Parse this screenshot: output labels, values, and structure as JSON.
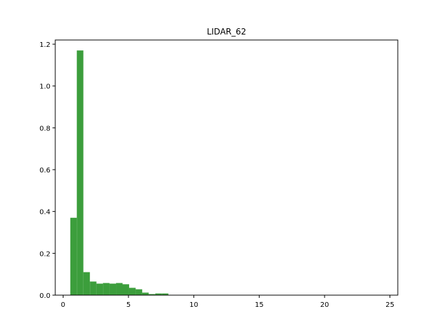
{
  "chart_data": {
    "type": "bar",
    "title": "LIDAR_62",
    "xlabel": "",
    "ylabel": "",
    "xlim": [
      -0.6,
      25.6
    ],
    "ylim": [
      0,
      1.22
    ],
    "grid": false,
    "bar_color": "#3c9e3c",
    "xticks": [
      0,
      5,
      10,
      15,
      20,
      25
    ],
    "yticks": [
      "0.0",
      "0.2",
      "0.4",
      "0.6",
      "0.8",
      "1.0",
      "1.2"
    ],
    "bins": [
      {
        "x0": 0.55,
        "x1": 1.05,
        "value": 0.37
      },
      {
        "x0": 1.05,
        "x1": 1.55,
        "value": 1.17
      },
      {
        "x0": 1.55,
        "x1": 2.05,
        "value": 0.11
      },
      {
        "x0": 2.05,
        "x1": 2.55,
        "value": 0.065
      },
      {
        "x0": 2.55,
        "x1": 3.05,
        "value": 0.055
      },
      {
        "x0": 3.05,
        "x1": 3.55,
        "value": 0.058
      },
      {
        "x0": 3.55,
        "x1": 4.05,
        "value": 0.055
      },
      {
        "x0": 4.05,
        "x1": 4.55,
        "value": 0.058
      },
      {
        "x0": 4.55,
        "x1": 5.05,
        "value": 0.052
      },
      {
        "x0": 5.05,
        "x1": 5.55,
        "value": 0.035
      },
      {
        "x0": 5.55,
        "x1": 6.05,
        "value": 0.028
      },
      {
        "x0": 6.05,
        "x1": 6.55,
        "value": 0.012
      },
      {
        "x0": 6.55,
        "x1": 7.05,
        "value": 0.005
      },
      {
        "x0": 7.05,
        "x1": 7.55,
        "value": 0.008
      },
      {
        "x0": 7.55,
        "x1": 8.05,
        "value": 0.008
      }
    ]
  }
}
